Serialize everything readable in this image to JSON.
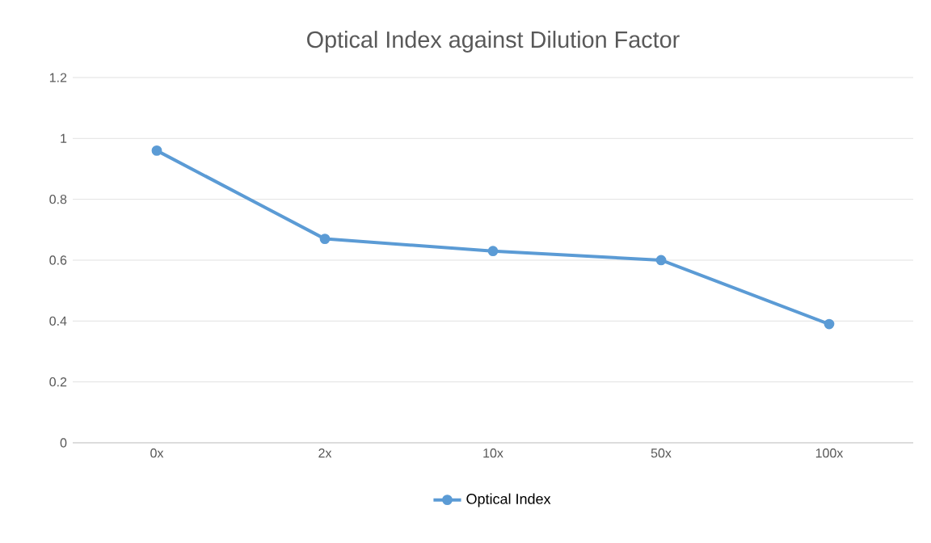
{
  "chart_data": {
    "type": "line",
    "title": "Optical Index against Dilution Factor",
    "categories": [
      "0x",
      "2x",
      "10x",
      "50x",
      "100x"
    ],
    "series": [
      {
        "name": "Optical Index",
        "color": "#5b9bd5",
        "values": [
          0.96,
          0.67,
          0.63,
          0.6,
          0.39
        ]
      }
    ],
    "ylim": [
      0,
      1.2
    ],
    "yticks": [
      0,
      0.2,
      0.4,
      0.6,
      0.8,
      1,
      1.2
    ],
    "grid": "y",
    "legend": "bottom",
    "marker": "circle",
    "line_style": "solid"
  }
}
